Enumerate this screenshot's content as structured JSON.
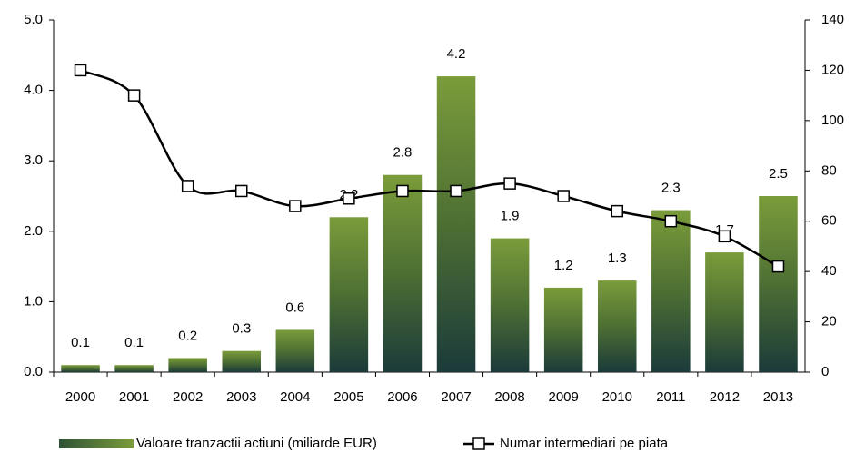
{
  "chart_data": {
    "type": "bar",
    "categories": [
      "2000",
      "2001",
      "2002",
      "2003",
      "2004",
      "2005",
      "2006",
      "2007",
      "2008",
      "2009",
      "2010",
      "2011",
      "2012",
      "2013"
    ],
    "series": [
      {
        "name": "Valoare tranzactii actiuni (miliarde EUR)",
        "type": "bar",
        "color": "#6f8f32",
        "values": [
          0.1,
          0.1,
          0.2,
          0.3,
          0.6,
          2.2,
          2.8,
          4.2,
          1.9,
          1.2,
          1.3,
          2.3,
          1.7,
          2.5
        ]
      },
      {
        "name": "Numar intermediari pe piata",
        "type": "line",
        "axis": "y2",
        "color": "#000000",
        "values": [
          120,
          110,
          74,
          72,
          66,
          69,
          72,
          72,
          75,
          70,
          64,
          60,
          54,
          42
        ]
      }
    ],
    "ylim": [
      0,
      5
    ],
    "yticks": [
      {
        "value": 0,
        "label": "0.0"
      },
      {
        "value": 1,
        "label": "1.0"
      },
      {
        "value": 2,
        "label": "2.0"
      },
      {
        "value": 3,
        "label": "3.0"
      },
      {
        "value": 4,
        "label": "4.0"
      },
      {
        "value": 5,
        "label": "5.0"
      }
    ],
    "y2lim": [
      0,
      140
    ],
    "y2ticks": [
      0,
      20,
      40,
      60,
      80,
      100,
      120,
      140
    ],
    "grid": false,
    "legend": "bottom"
  }
}
